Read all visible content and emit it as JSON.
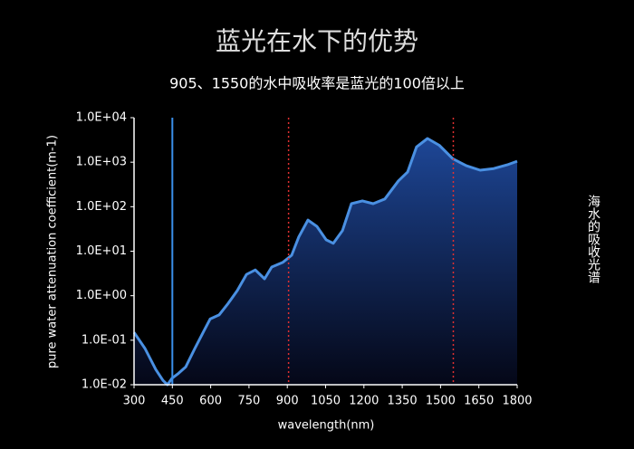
{
  "chart_data": {
    "type": "area-line",
    "title": "蓝光在水下的优势",
    "subtitle": "905、1550的水中吸收率是蓝光的100倍以上",
    "xlabel": "wavelength(nm)",
    "ylabel": "pure water attenuation coefficient(m-1)",
    "side_label": "海水的吸收光谱",
    "x": [
      300,
      343,
      385,
      413,
      431,
      449,
      474,
      502,
      538,
      573,
      598,
      633,
      669,
      704,
      740,
      775,
      811,
      839,
      882,
      917,
      945,
      981,
      1016,
      1052,
      1080,
      1116,
      1151,
      1194,
      1236,
      1282,
      1335,
      1371,
      1406,
      1449,
      1495,
      1548,
      1601,
      1655,
      1708,
      1761,
      1800
    ],
    "values": [
      0.15,
      0.065,
      0.022,
      0.0125,
      0.01,
      0.014,
      0.018,
      0.025,
      0.065,
      0.16,
      0.3,
      0.37,
      0.68,
      1.3,
      3.0,
      3.8,
      2.4,
      4.4,
      5.6,
      8.1,
      21,
      50,
      36,
      18,
      15,
      29,
      117,
      135,
      117,
      149,
      380,
      600,
      2200,
      3400,
      2400,
      1200,
      830,
      660,
      720,
      870,
      1050
    ],
    "color": "#4a90e2",
    "ylog": true,
    "xlim": [
      300,
      1800
    ],
    "xticks": [
      300,
      450,
      600,
      750,
      900,
      1050,
      1200,
      1350,
      1500,
      1650,
      1800
    ],
    "ylim": [
      0.01,
      10000
    ],
    "yticks": [
      {
        "value": 0.01,
        "label": "1.0E-02"
      },
      {
        "value": 0.1,
        "label": "1.0E-01"
      },
      {
        "value": 1,
        "label": "1.0E+00"
      },
      {
        "value": 10,
        "label": "1.0E+01"
      },
      {
        "value": 100,
        "label": "1.0E+02"
      },
      {
        "value": 1000,
        "label": "1.0E+03"
      },
      {
        "value": 10000,
        "label": "1.0E+04"
      }
    ],
    "reference_lines": [
      {
        "x": 450,
        "color": "#3a8ee8",
        "style": "solid"
      },
      {
        "x": 905,
        "color": "#e03030",
        "style": "dotted"
      },
      {
        "x": 1550,
        "color": "#e03030",
        "style": "dotted"
      }
    ]
  }
}
